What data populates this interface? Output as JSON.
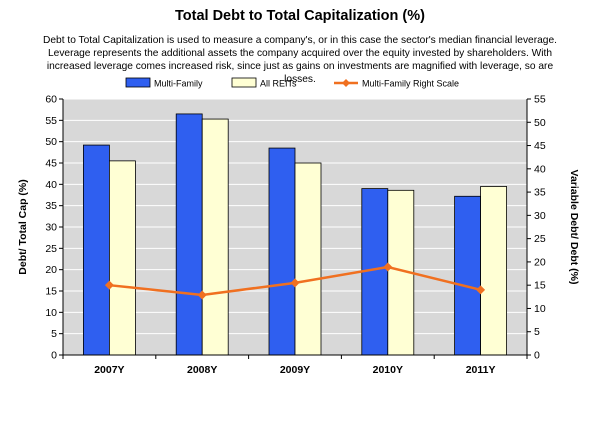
{
  "chart_data": {
    "type": "bar",
    "title": "Total Debt to Total Capitalization (%)",
    "subtitle": "Debt to Total Capitalization is used to measure a company's, or in this case the sector's median financial leverage.  Leverage represents the additional assets the company acquired over the equity invested by shareholders.  With increased leverage comes increased risk, since just as gains on investments are magnified with leverage, so are losses.",
    "categories": [
      "2007Y",
      "2008Y",
      "2009Y",
      "2010Y",
      "2011Y"
    ],
    "series": [
      {
        "name": "Multi-Family",
        "type": "bar",
        "axis": "left",
        "color": "#2f5ff0",
        "values": [
          49.2,
          56.5,
          48.5,
          39.0,
          37.2
        ]
      },
      {
        "name": "All REITs",
        "type": "bar",
        "axis": "left",
        "color": "#ffffd4",
        "values": [
          45.5,
          55.3,
          45.0,
          38.6,
          39.5
        ]
      },
      {
        "name": "Multi-Family Right Scale",
        "type": "line",
        "axis": "right",
        "color": "#f07020",
        "values": [
          15.0,
          12.9,
          15.5,
          18.9,
          14.0
        ]
      }
    ],
    "ylabel": "Debt/ Total Cap (%)",
    "ylabel_right": "Variable Debt/ Debt (%)",
    "ylim": [
      0,
      60
    ],
    "yticks": [
      0,
      5,
      10,
      15,
      20,
      25,
      30,
      35,
      40,
      45,
      50,
      55,
      60
    ],
    "ylim_right": [
      0,
      55
    ],
    "yticks_right": [
      0,
      5,
      10,
      15,
      20,
      25,
      30,
      35,
      40,
      45,
      50,
      55
    ],
    "grid": true,
    "legend": "top"
  }
}
